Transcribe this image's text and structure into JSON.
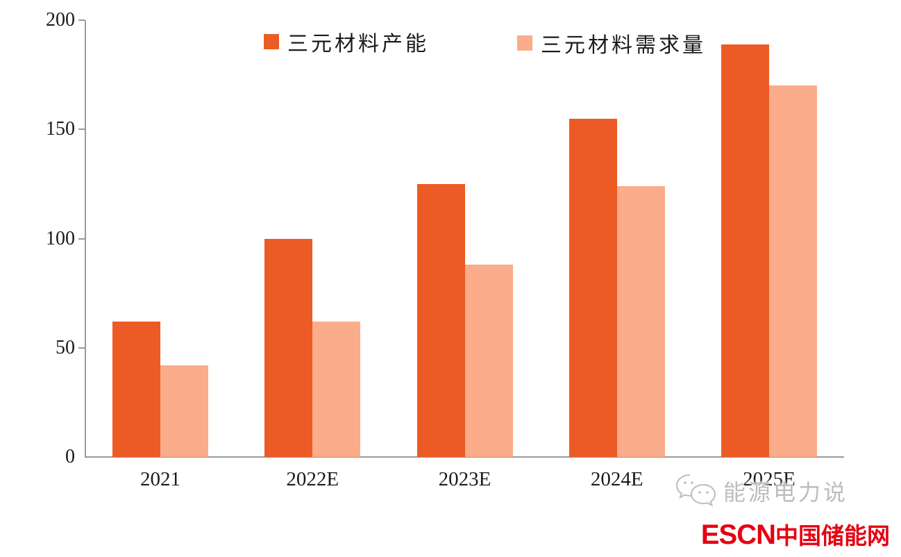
{
  "chart_data": {
    "type": "bar",
    "categories": [
      "2021",
      "2022E",
      "2023E",
      "2024E",
      "2025E"
    ],
    "series": [
      {
        "name": "三元材料产能",
        "color": "#EC5B25",
        "values": [
          62,
          100,
          125,
          155,
          189
        ]
      },
      {
        "name": "三元材料需求量",
        "color": "#FBAC8A",
        "values": [
          42,
          62,
          88,
          124,
          170
        ]
      }
    ],
    "title": "",
    "xlabel": "",
    "ylabel": "",
    "ylim": [
      0,
      200
    ],
    "yticks": [
      0,
      50,
      100,
      150,
      200
    ],
    "grid": false,
    "legend_position": "top"
  },
  "legend": {
    "items": [
      {
        "label": "三元材料产能",
        "color": "#EC5B25"
      },
      {
        "label": "三元材料需求量",
        "color": "#FBAC8A"
      }
    ]
  },
  "watermark": {
    "icon": "wechat-icon",
    "text": "能源电力说"
  },
  "branding": {
    "escn": "ESCN",
    "site_name": "中国储能网",
    "color": "#E60012"
  },
  "colors": {
    "axis": "#999999",
    "text": "#1b1b1b",
    "watermark": "#bdbdbd"
  }
}
